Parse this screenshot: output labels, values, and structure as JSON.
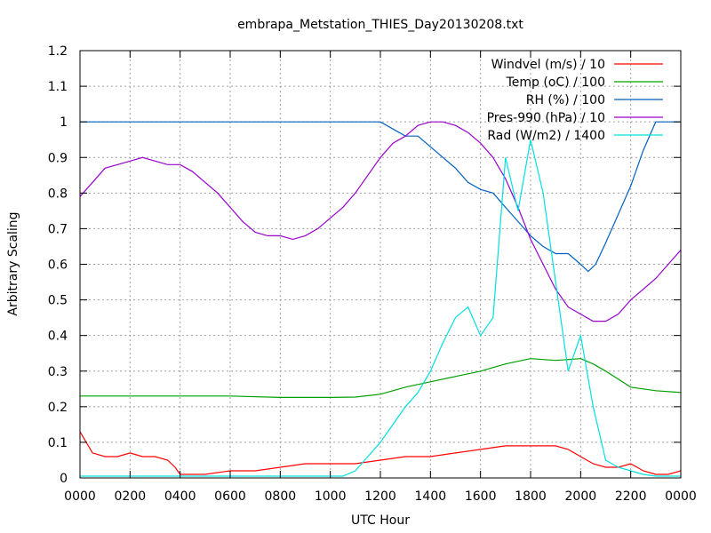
{
  "chart_data": {
    "type": "line",
    "title": "embrapa_Metstation_THIES_Day20130208.txt",
    "xlabel": "UTC Hour",
    "ylabel": "Arbitrary Scaling",
    "xlim": [
      0,
      24
    ],
    "ylim": [
      0,
      1.2
    ],
    "xticks": [
      "0000",
      "0200",
      "0400",
      "0600",
      "0800",
      "1000",
      "1200",
      "1400",
      "1600",
      "1800",
      "2000",
      "2200",
      "0000"
    ],
    "yticks": [
      "0",
      "0.1",
      "0.2",
      "0.3",
      "0.4",
      "0.5",
      "0.6",
      "0.7",
      "0.8",
      "0.9",
      "1",
      "1.1",
      "1.2"
    ],
    "grid": true,
    "legend_position": "top-right",
    "series": [
      {
        "name": "Windvel (m/s) / 10",
        "color": "#ff0000",
        "x": [
          0,
          0.5,
          1,
          1.5,
          2,
          2.5,
          3,
          3.5,
          3.8,
          4,
          5,
          6,
          7,
          8,
          9,
          10,
          11,
          12,
          13,
          14,
          15,
          16,
          17,
          18,
          19,
          19.5,
          20,
          20.5,
          21,
          21.5,
          22,
          22.5,
          23,
          23.5,
          24
        ],
        "y": [
          0.13,
          0.07,
          0.06,
          0.06,
          0.07,
          0.06,
          0.06,
          0.05,
          0.03,
          0.01,
          0.01,
          0.02,
          0.02,
          0.03,
          0.04,
          0.04,
          0.04,
          0.05,
          0.06,
          0.06,
          0.07,
          0.08,
          0.09,
          0.09,
          0.09,
          0.08,
          0.06,
          0.04,
          0.03,
          0.03,
          0.04,
          0.02,
          0.01,
          0.01,
          0.02
        ]
      },
      {
        "name": "Temp (oC) / 100",
        "color": "#00a000",
        "x": [
          0,
          2,
          4,
          6,
          8,
          10,
          11,
          12,
          13,
          14,
          15,
          16,
          17,
          18,
          19,
          20,
          20.5,
          21,
          22,
          23,
          24
        ],
        "y": [
          0.23,
          0.23,
          0.23,
          0.23,
          0.226,
          0.226,
          0.227,
          0.235,
          0.255,
          0.27,
          0.285,
          0.3,
          0.32,
          0.335,
          0.33,
          0.335,
          0.32,
          0.3,
          0.255,
          0.245,
          0.24
        ]
      },
      {
        "name": "RH (%) / 100",
        "color": "#0060c0",
        "x": [
          0,
          12,
          12.5,
          13,
          13.5,
          14,
          14.5,
          15,
          15.5,
          16,
          16.5,
          17,
          17.5,
          18,
          18.5,
          19,
          19.5,
          20,
          20.3,
          20.6,
          21,
          21.5,
          22,
          22.5,
          23,
          24
        ],
        "y": [
          1,
          1,
          0.98,
          0.96,
          0.96,
          0.93,
          0.9,
          0.87,
          0.83,
          0.81,
          0.8,
          0.76,
          0.72,
          0.68,
          0.65,
          0.63,
          0.63,
          0.6,
          0.58,
          0.6,
          0.66,
          0.74,
          0.82,
          0.92,
          1,
          1
        ]
      },
      {
        "name": "Pres-990 (hPa) / 10",
        "color": "#9900cc",
        "x": [
          0,
          0.5,
          1,
          1.5,
          2,
          2.5,
          3,
          3.5,
          4,
          4.5,
          5,
          5.5,
          6,
          6.5,
          7,
          7.5,
          8,
          8.5,
          9,
          9.5,
          10,
          10.5,
          11,
          11.5,
          12,
          12.5,
          13,
          13.5,
          14,
          14.5,
          15,
          15.5,
          16,
          16.5,
          17,
          17.5,
          18,
          18.5,
          19,
          19.5,
          20,
          20.5,
          21,
          21.5,
          22,
          22.5,
          23,
          23.5,
          24
        ],
        "y": [
          0.79,
          0.83,
          0.87,
          0.88,
          0.89,
          0.9,
          0.89,
          0.88,
          0.88,
          0.86,
          0.83,
          0.8,
          0.76,
          0.72,
          0.69,
          0.68,
          0.68,
          0.67,
          0.68,
          0.7,
          0.73,
          0.76,
          0.8,
          0.85,
          0.9,
          0.94,
          0.96,
          0.99,
          1,
          1,
          0.99,
          0.97,
          0.94,
          0.9,
          0.84,
          0.76,
          0.67,
          0.6,
          0.53,
          0.48,
          0.46,
          0.44,
          0.44,
          0.46,
          0.5,
          0.53,
          0.56,
          0.6,
          0.64
        ]
      },
      {
        "name": "Rad (W/m2) / 1400",
        "color": "#00e0e0",
        "x": [
          0,
          10.5,
          11,
          11.5,
          12,
          12.5,
          13,
          13.5,
          14,
          14.5,
          15,
          15.5,
          16,
          16.5,
          17,
          17.5,
          18,
          18.5,
          19,
          19.5,
          20,
          20.5,
          21,
          21.5,
          22,
          22.5,
          23,
          24
        ],
        "y": [
          0.005,
          0.005,
          0.02,
          0.06,
          0.1,
          0.15,
          0.2,
          0.24,
          0.3,
          0.38,
          0.45,
          0.48,
          0.4,
          0.45,
          0.9,
          0.75,
          0.95,
          0.8,
          0.55,
          0.3,
          0.4,
          0.2,
          0.05,
          0.03,
          0.02,
          0.01,
          0.005,
          0.005
        ]
      }
    ]
  }
}
